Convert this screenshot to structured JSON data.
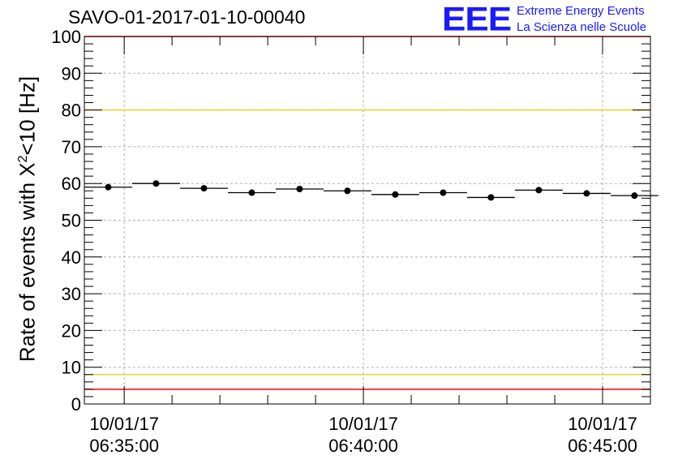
{
  "header": {
    "title": "SAVO-01-2017-01-10-00040",
    "logo": "EEE",
    "logo_line1": "Extreme Energy Events",
    "logo_line2": "La Scienza nelle Scuole"
  },
  "chart_data": {
    "type": "scatter",
    "title": "SAVO-01-2017-01-10-00040",
    "ylabel_prefix": "Rate of events with X",
    "ylabel_sup": "2",
    "ylabel_suffix": "<10 [Hz]",
    "ylim": [
      0,
      100
    ],
    "yticks": [
      "0",
      "10",
      "20",
      "30",
      "40",
      "50",
      "60",
      "70",
      "80",
      "90",
      "100"
    ],
    "xlim": [
      "06:34:10",
      "06:46:00"
    ],
    "xticks": [
      {
        "t": "06:35:00",
        "date": "10/01/17",
        "time": "06:35:00"
      },
      {
        "t": "06:40:00",
        "date": "10/01/17",
        "time": "06:40:00"
      },
      {
        "t": "06:45:00",
        "date": "10/01/17",
        "time": "06:45:00"
      }
    ],
    "grid": true,
    "bin_width_s": 60,
    "series": [
      {
        "x": [
          "06:34:40",
          "06:35:40",
          "06:36:40",
          "06:37:40",
          "06:38:40",
          "06:39:40",
          "06:40:40",
          "06:41:40",
          "06:42:40",
          "06:43:40",
          "06:44:40",
          "06:45:40"
        ],
        "values": [
          59.0,
          60.0,
          58.7,
          57.5,
          58.5,
          58.0,
          57.0,
          57.5,
          56.2,
          58.2,
          57.3,
          56.7
        ]
      }
    ],
    "reference_lines": [
      {
        "y": 100,
        "color": "#ff0000"
      },
      {
        "y": 80,
        "color": "#f2d230"
      },
      {
        "y": 8,
        "color": "#f2d230"
      },
      {
        "y": 4,
        "color": "#ff0000"
      }
    ]
  }
}
